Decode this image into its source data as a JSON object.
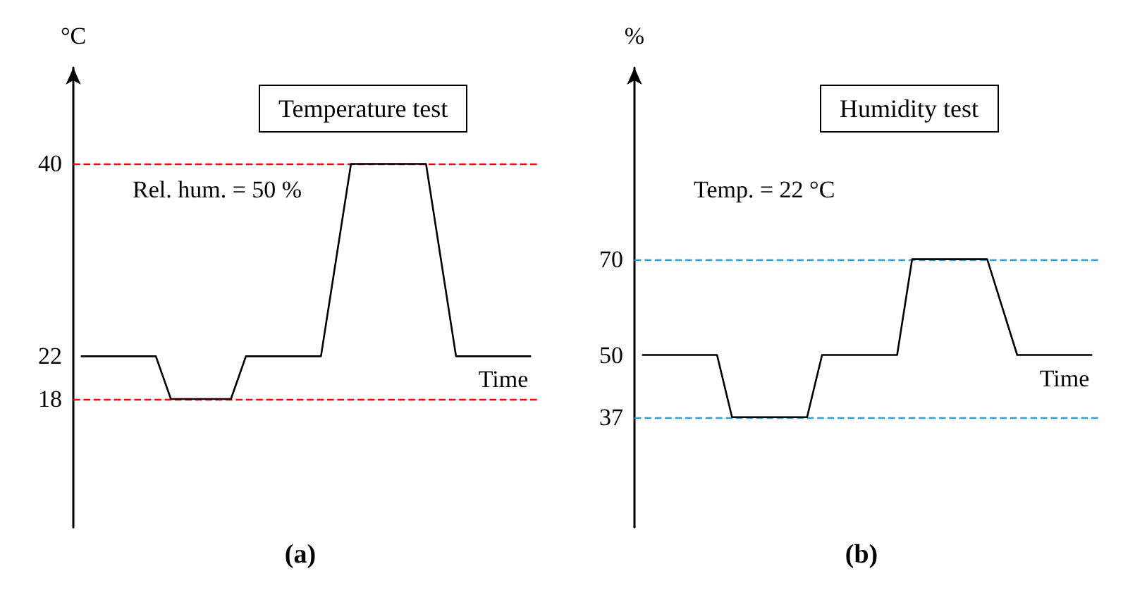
{
  "chart_data": [
    {
      "type": "line",
      "title": "Temperature test",
      "ylabel": "°C",
      "xlabel": "Time",
      "categories": [
        null,
        null,
        null,
        null,
        null,
        null,
        null,
        null,
        null,
        null,
        null,
        null,
        null,
        null,
        null,
        null,
        null,
        null,
        null,
        null,
        null,
        null,
        null,
        null,
        null,
        null,
        null,
        null,
        null,
        null,
        null
      ],
      "ylim": [
        6,
        49
      ],
      "yticks": [
        18,
        22,
        40
      ],
      "tick_labels": "y",
      "grid": false,
      "marker": "none",
      "line_style": "solid",
      "series": [
        {
          "color": "#000000",
          "values": [
            22,
            22,
            22,
            22,
            22,
            22,
            18,
            18,
            18,
            18,
            18,
            22,
            22,
            22,
            22,
            22,
            22,
            31,
            40,
            40,
            40,
            40,
            40,
            40,
            31,
            22,
            22,
            22,
            22,
            22,
            22
          ]
        }
      ],
      "ref_lines": [
        {
          "axis": "y",
          "value": 40,
          "color": "#ff0000",
          "line_style": "dashed"
        },
        {
          "axis": "y",
          "value": 18,
          "color": "#ff0000",
          "line_style": "dashed"
        }
      ],
      "annotations": [
        "Rel. hum. = 50 %",
        "(a)"
      ]
    },
    {
      "type": "line",
      "title": "Humidity test",
      "ylabel": "%",
      "xlabel": "Time",
      "categories": [
        null,
        null,
        null,
        null,
        null,
        null,
        null,
        null,
        null,
        null,
        null,
        null,
        null,
        null,
        null,
        null,
        null,
        null,
        null,
        null,
        null,
        null,
        null,
        null,
        null,
        null,
        null,
        null,
        null,
        null,
        null
      ],
      "ylim": [
        14,
        110
      ],
      "yticks": [
        37,
        50,
        70
      ],
      "tick_labels": "y",
      "grid": false,
      "marker": "none",
      "line_style": "solid",
      "series": [
        {
          "color": "#000000",
          "values": [
            50,
            50,
            50,
            50,
            50,
            50,
            37,
            37,
            37,
            37,
            37,
            37,
            50,
            50,
            50,
            50,
            50,
            50,
            70,
            70,
            70,
            70,
            70,
            70,
            60,
            50,
            50,
            50,
            50,
            50,
            50
          ]
        }
      ],
      "ref_lines": [
        {
          "axis": "y",
          "value": 70,
          "color": "#29a3d6",
          "line_style": "dashed"
        },
        {
          "axis": "y",
          "value": 37,
          "color": "#29a3d6",
          "line_style": "dashed"
        }
      ],
      "annotations": [
        "Temp. = 22 °C",
        "(b)"
      ]
    }
  ]
}
